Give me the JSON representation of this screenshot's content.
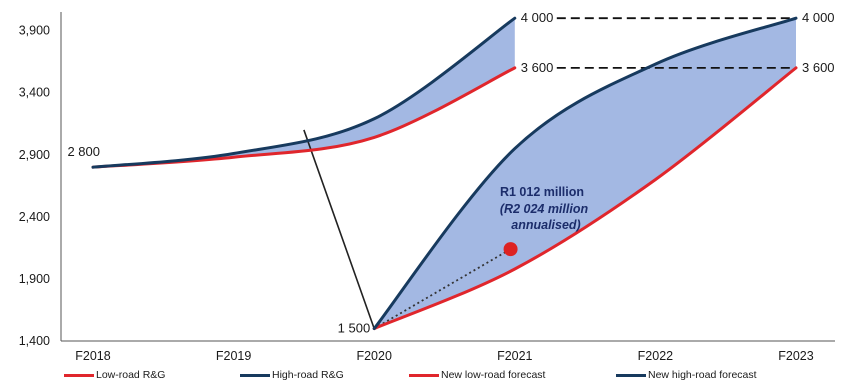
{
  "chart_data": {
    "type": "line",
    "x": [
      "F2018",
      "F2019",
      "F2020",
      "F2021",
      "F2022",
      "F2023"
    ],
    "yticks": [
      "1,400",
      "1,900",
      "2,400",
      "2,900",
      "3,400",
      "3,900"
    ],
    "ytick_values": [
      1400,
      1900,
      2400,
      2900,
      3400,
      3900
    ],
    "ylim": [
      1400,
      4050
    ],
    "grid": false,
    "legend_position": "bottom",
    "series": [
      {
        "name": "Low-road R&G",
        "color": "#e0262c",
        "points": [
          [
            0,
            2800
          ],
          [
            1,
            2880
          ],
          [
            2,
            3040
          ],
          [
            3,
            3600
          ]
        ]
      },
      {
        "name": "High-road R&G",
        "color": "#173a5e",
        "points": [
          [
            0,
            2800
          ],
          [
            1,
            2910
          ],
          [
            2,
            3190
          ],
          [
            3,
            4000
          ]
        ]
      },
      {
        "name": "New low-road forecast",
        "color": "#e0262c",
        "points": [
          [
            2,
            1500
          ],
          [
            3,
            1980
          ],
          [
            4,
            2700
          ],
          [
            5,
            3600
          ]
        ]
      },
      {
        "name": "New high-road forecast",
        "color": "#173a5e",
        "points": [
          [
            2,
            1500
          ],
          [
            3,
            2950
          ],
          [
            4,
            3630
          ],
          [
            5,
            4000
          ]
        ]
      }
    ],
    "fill_color": "#a3b8e3",
    "connector": {
      "from": [
        1.5,
        3100
      ],
      "to": [
        2,
        1500
      ]
    },
    "dotted_line": {
      "from": [
        2,
        1500
      ],
      "to": [
        2.97,
        2140
      ]
    },
    "dot_color": "#dd2222",
    "data_labels": [
      {
        "text": "2 800",
        "x": 0,
        "y": 2800
      },
      {
        "text": "1 500",
        "x": 2,
        "y": 1500
      },
      {
        "text": "4 000",
        "x": 3,
        "y": 4000
      },
      {
        "text": "3 600",
        "x": 3,
        "y": 3600
      },
      {
        "text": "4 000",
        "x": 5,
        "y": 4000
      },
      {
        "text": "3 600",
        "x": 5,
        "y": 3600
      }
    ],
    "annotation": {
      "line1": "R1 012 million",
      "line2": "(R2 024 million",
      "line3": "annualised)"
    }
  }
}
